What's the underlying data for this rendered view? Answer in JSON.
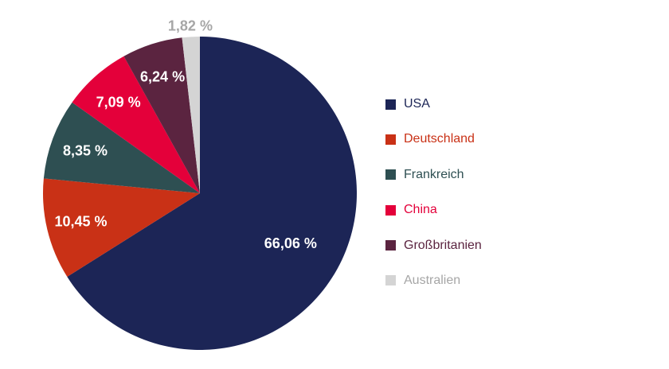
{
  "chart_data": {
    "type": "pie",
    "title": "",
    "categories": [
      "USA",
      "Deutschland",
      "Frankreich",
      "China",
      "Großbritanien",
      "Australien"
    ],
    "values": [
      66.06,
      10.45,
      8.35,
      7.09,
      6.24,
      1.82
    ],
    "value_labels": [
      "66,06 %",
      "10,45 %",
      "8,35 %",
      "7,09 %",
      "6,24 %",
      "1,82 %"
    ],
    "colors": [
      "#1c2556",
      "#c93116",
      "#2e4f52",
      "#e4003a",
      "#5b2440",
      "#d4d4d4"
    ],
    "legend_text_colors": [
      "#1c2556",
      "#c93116",
      "#2e4f52",
      "#e4003a",
      "#5b2440",
      "#a6a6a6"
    ],
    "legend_position": "right",
    "start_angle": "top",
    "direction": "clockwise"
  }
}
